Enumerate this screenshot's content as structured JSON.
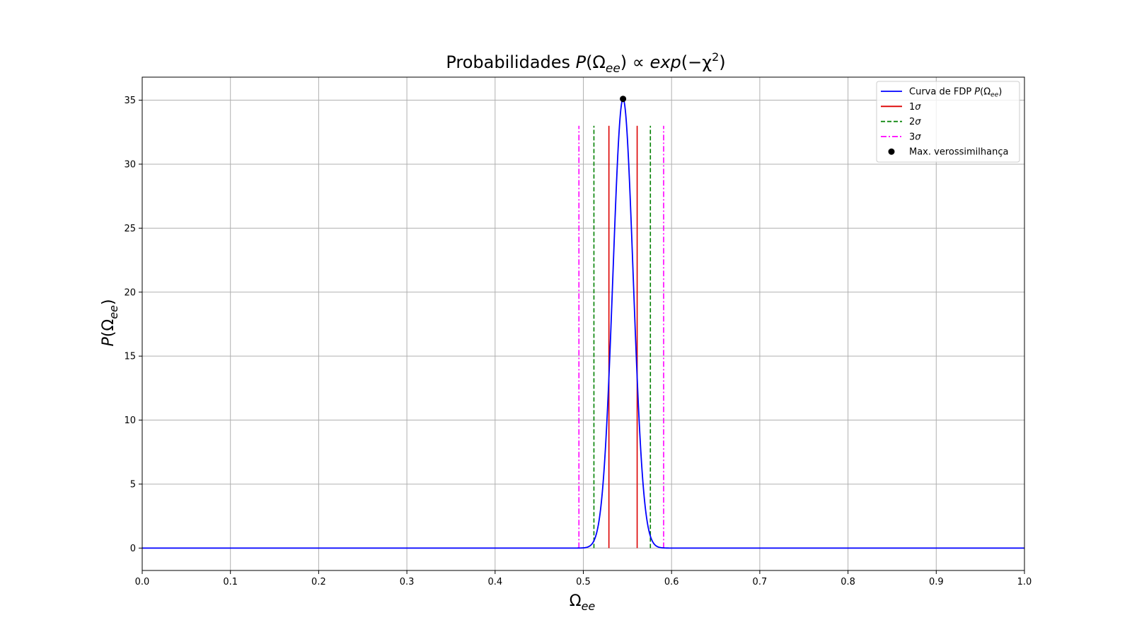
{
  "chart_data": {
    "type": "line",
    "title": {
      "prefix": "Probabilidades ",
      "func": "P",
      "open": "(Ω",
      "sub": "ee",
      "close": ") ∝ ",
      "exp": "exp",
      "arg_open": "(−χ",
      "sup": "2",
      "arg_close": ")"
    },
    "xlabel": {
      "main": "Ω",
      "sub": "ee"
    },
    "ylabel": {
      "func": "P",
      "open": "(Ω",
      "sub": "ee",
      "close": ")"
    },
    "xlim": [
      0.0,
      1.0
    ],
    "ylim": [
      -1.75,
      36.8
    ],
    "xticks": [
      0.0,
      0.1,
      0.2,
      0.3,
      0.4,
      0.5,
      0.6,
      0.7,
      0.8,
      0.9,
      1.0
    ],
    "xtick_labels": [
      "0.0",
      "0.1",
      "0.2",
      "0.3",
      "0.4",
      "0.5",
      "0.6",
      "0.7",
      "0.8",
      "0.9",
      "1.0"
    ],
    "yticks": [
      0,
      5,
      10,
      15,
      20,
      25,
      30,
      35
    ],
    "ytick_labels": [
      "0",
      "5",
      "10",
      "15",
      "20",
      "25",
      "30",
      "35"
    ],
    "grid": true,
    "legend_position": "top-right",
    "curve": {
      "kind": "gaussian",
      "mean": 0.545,
      "peak": 35.1,
      "sigma": 0.0115,
      "color": "#0000ff"
    },
    "vlines": [
      {
        "name": "1σ",
        "x": [
          0.529,
          0.561
        ],
        "ymin": 0,
        "ymax": 33,
        "color": "#dd0000",
        "style": "solid"
      },
      {
        "name": "2σ",
        "x": [
          0.512,
          0.576
        ],
        "ymin": 0,
        "ymax": 33,
        "color": "#008000",
        "style": "dashed"
      },
      {
        "name": "3σ",
        "x": [
          0.495,
          0.591
        ],
        "ymin": 0,
        "ymax": 33,
        "color": "#ff00ff",
        "style": "dashdot"
      }
    ],
    "max_point": {
      "x": 0.545,
      "y": 35.1,
      "color": "#000000"
    },
    "legend": [
      {
        "kind": "line",
        "style": "solid",
        "color": "#0000ff",
        "label": "Curva de FDP ",
        "func": "P",
        "open": "(Ω",
        "sub": "ee",
        "close": ")"
      },
      {
        "kind": "line",
        "style": "solid",
        "color": "#dd0000",
        "label": "1",
        "sym": "σ"
      },
      {
        "kind": "line",
        "style": "dashed",
        "color": "#008000",
        "label": "2",
        "sym": "σ"
      },
      {
        "kind": "line",
        "style": "dashdot",
        "color": "#ff00ff",
        "label": "3",
        "sym": "σ"
      },
      {
        "kind": "marker",
        "color": "#000000",
        "label": "Max. verossimilhança"
      }
    ]
  }
}
